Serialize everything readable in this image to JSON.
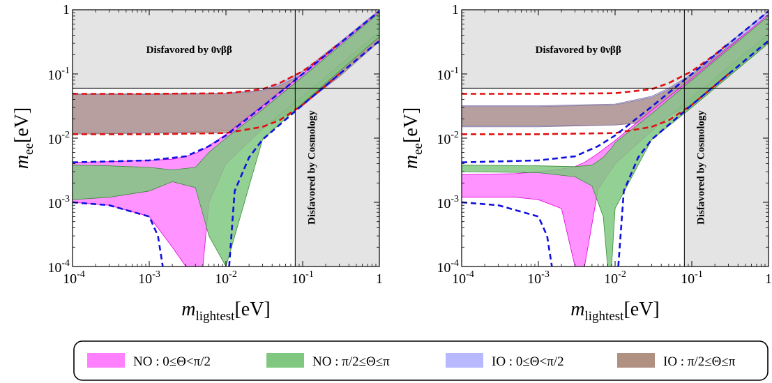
{
  "chart_data": [
    {
      "type": "area",
      "panel": "left",
      "xlabel": "m_lightest[eV]",
      "ylabel": "m_ee[eV]",
      "xscale": "log",
      "yscale": "log",
      "xlim": [
        0.0001,
        1
      ],
      "ylim": [
        0.0001,
        1
      ],
      "xtick_labels": [
        "10^-4",
        "10^-3",
        "10^-2",
        "10^-1",
        "1"
      ],
      "ytick_labels": [
        "10^-4",
        "10^-3",
        "10^-2",
        "10^-1",
        "1"
      ],
      "annotations": [
        "Disfavored by 0νββ",
        "Disfavored by Cosmology"
      ],
      "excluded_regions": {
        "mee_above": 0.06,
        "mlightest_above": 0.08
      },
      "series": [
        {
          "name": "NO : 0≤Θ<π/2",
          "color": "#ff80ff",
          "x": [
            0.0001,
            0.0003,
            0.001,
            0.002,
            0.003,
            0.004,
            0.005,
            0.006,
            0.01,
            0.03,
            0.1,
            1
          ],
          "upper": [
            0.0042,
            0.0043,
            0.0045,
            0.0047,
            0.0052,
            0.0058,
            0.0066,
            0.0076,
            0.0115,
            0.032,
            0.1,
            0.95
          ],
          "lower": [
            0.001,
            0.0009,
            0.0006,
            0.0002,
            0.0001,
            0.0001,
            0.0001,
            0.001,
            0.004,
            0.014,
            0.045,
            0.45
          ]
        },
        {
          "name": "NO : π/2≤Θ≤π",
          "color": "#80c880",
          "x": [
            0.0001,
            0.0003,
            0.001,
            0.002,
            0.004,
            0.006,
            0.01,
            0.03,
            0.1,
            1
          ],
          "upper": [
            0.0038,
            0.0037,
            0.0035,
            0.0032,
            0.0035,
            0.006,
            0.01,
            0.028,
            0.09,
            0.9
          ],
          "lower": [
            0.0011,
            0.0012,
            0.0015,
            0.0021,
            0.0017,
            0.0003,
            0.0001,
            0.0095,
            0.035,
            0.38
          ]
        },
        {
          "name": "IO : 0≤Θ<π/2",
          "color": "#b8b8ff",
          "x": [
            0.0001,
            0.001,
            0.01,
            0.03,
            0.05,
            0.1,
            0.3,
            1
          ],
          "upper": [
            0.049,
            0.049,
            0.05,
            0.056,
            0.07,
            0.11,
            0.31,
            0.99
          ],
          "lower": [
            0.012,
            0.012,
            0.013,
            0.016,
            0.02,
            0.035,
            0.1,
            0.33
          ]
        },
        {
          "name": "IO : π/2≤Θ≤π",
          "color": "#b09080",
          "x": [
            0.0001,
            0.001,
            0.01,
            0.03,
            0.05,
            0.1,
            0.3,
            1
          ],
          "upper": [
            0.048,
            0.048,
            0.049,
            0.054,
            0.066,
            0.1,
            0.27,
            0.8
          ],
          "lower": [
            0.0115,
            0.012,
            0.012,
            0.015,
            0.02,
            0.033,
            0.09,
            0.32
          ]
        }
      ],
      "reference_curves": [
        {
          "color": "#e01010",
          "style": "dashed",
          "x": [
            0.0001,
            0.001,
            0.01,
            0.03,
            0.05,
            0.1,
            0.2,
            0.3
          ],
          "y": [
            0.049,
            0.049,
            0.05,
            0.058,
            0.072,
            0.11,
            0.2,
            0.3
          ]
        },
        {
          "color": "#e01010",
          "style": "dashed",
          "x": [
            0.0001,
            0.001,
            0.01,
            0.03,
            0.05,
            0.1,
            0.2,
            0.3
          ],
          "y": [
            0.0115,
            0.0115,
            0.012,
            0.015,
            0.019,
            0.033,
            0.066,
            0.1
          ]
        },
        {
          "color": "#1010e0",
          "style": "dashed",
          "x": [
            0.0001,
            0.001,
            0.003,
            0.006,
            0.01,
            0.03,
            0.1,
            1
          ],
          "y": [
            0.0042,
            0.0045,
            0.0052,
            0.0075,
            0.011,
            0.031,
            0.1,
            0.95
          ]
        },
        {
          "color": "#1010e0",
          "style": "dashed",
          "x": [
            0.0001,
            0.0003,
            0.001,
            0.0013,
            0.0015
          ],
          "y": [
            0.001,
            0.0009,
            0.0006,
            0.0003,
            0.0001
          ]
        },
        {
          "color": "#1010e0",
          "style": "dashed",
          "x": [
            0.011,
            0.013,
            0.02,
            0.03,
            0.1,
            1
          ],
          "y": [
            0.0001,
            0.0015,
            0.005,
            0.0095,
            0.033,
            0.33
          ]
        }
      ]
    },
    {
      "type": "area",
      "panel": "right",
      "xlabel": "m_lightest[eV]",
      "ylabel": "m_ee[eV]",
      "xscale": "log",
      "yscale": "log",
      "xlim": [
        0.0001,
        1
      ],
      "ylim": [
        0.0001,
        1
      ],
      "xtick_labels": [
        "10^-4",
        "10^-3",
        "10^-2",
        "10^-1",
        "1"
      ],
      "ytick_labels": [
        "10^-4",
        "10^-3",
        "10^-2",
        "10^-1",
        "1"
      ],
      "annotations": [
        "Disfavored by 0νββ",
        "Disfavored by Cosmology"
      ],
      "excluded_regions": {
        "mee_above": 0.06,
        "mlightest_above": 0.08
      },
      "series": [
        {
          "name": "NO : 0≤Θ<π/2",
          "color": "#ff80ff",
          "x": [
            0.0001,
            0.0005,
            0.001,
            0.002,
            0.003,
            0.004,
            0.006,
            0.01,
            0.03,
            0.1,
            1
          ],
          "upper": [
            0.0027,
            0.0028,
            0.003,
            0.0033,
            0.0036,
            0.0042,
            0.0058,
            0.0092,
            0.027,
            0.085,
            0.85
          ],
          "lower": [
            0.0012,
            0.0012,
            0.0011,
            0.0008,
            0.0001,
            0.0001,
            0.0016,
            0.004,
            0.013,
            0.043,
            0.42
          ]
        },
        {
          "name": "NO : π/2≤Θ≤π",
          "color": "#80c880",
          "x": [
            0.0001,
            0.001,
            0.003,
            0.005,
            0.007,
            0.008,
            0.009,
            0.01,
            0.03,
            0.1,
            1
          ],
          "upper": [
            0.0038,
            0.0037,
            0.0036,
            0.0038,
            0.005,
            0.006,
            0.007,
            0.0085,
            0.024,
            0.08,
            0.8
          ],
          "lower": [
            0.003,
            0.0029,
            0.0025,
            0.0018,
            0.0006,
            0.0001,
            0.0001,
            0.0008,
            0.0095,
            0.03,
            0.3
          ]
        },
        {
          "name": "IO : 0≤Θ<π/2",
          "color": "#b8b8ff",
          "x": [
            0.0001,
            0.001,
            0.01,
            0.03,
            0.05,
            0.1,
            0.3,
            1
          ],
          "upper": [
            0.032,
            0.032,
            0.034,
            0.045,
            0.06,
            0.1,
            0.3,
            0.95
          ],
          "lower": [
            0.015,
            0.015,
            0.016,
            0.018,
            0.022,
            0.035,
            0.1,
            0.32
          ]
        },
        {
          "name": "IO : π/2≤Θ≤π",
          "color": "#b09080",
          "x": [
            0.0001,
            0.001,
            0.01,
            0.03,
            0.05,
            0.1,
            0.3,
            1
          ],
          "upper": [
            0.031,
            0.031,
            0.033,
            0.043,
            0.057,
            0.095,
            0.27,
            0.8
          ],
          "lower": [
            0.0155,
            0.0155,
            0.016,
            0.018,
            0.022,
            0.034,
            0.095,
            0.3
          ]
        }
      ],
      "reference_curves": [
        {
          "color": "#e01010",
          "style": "dashed",
          "x": [
            0.0001,
            0.001,
            0.01,
            0.03,
            0.05,
            0.1,
            0.2,
            0.3
          ],
          "y": [
            0.049,
            0.049,
            0.05,
            0.058,
            0.072,
            0.11,
            0.2,
            0.3
          ]
        },
        {
          "color": "#e01010",
          "style": "dashed",
          "x": [
            0.0001,
            0.001,
            0.01,
            0.03,
            0.05,
            0.1,
            0.2,
            0.3
          ],
          "y": [
            0.0115,
            0.0115,
            0.012,
            0.015,
            0.019,
            0.033,
            0.066,
            0.1
          ]
        },
        {
          "color": "#1010e0",
          "style": "dashed",
          "x": [
            0.0001,
            0.001,
            0.003,
            0.006,
            0.01,
            0.03,
            0.1,
            1
          ],
          "y": [
            0.0042,
            0.0045,
            0.0052,
            0.0075,
            0.011,
            0.031,
            0.1,
            0.95
          ]
        },
        {
          "color": "#1010e0",
          "style": "dashed",
          "x": [
            0.0001,
            0.0003,
            0.001,
            0.0013,
            0.0015
          ],
          "y": [
            0.001,
            0.0009,
            0.0006,
            0.0003,
            0.0001
          ]
        },
        {
          "color": "#1010e0",
          "style": "dashed",
          "x": [
            0.011,
            0.013,
            0.02,
            0.03,
            0.1,
            1
          ],
          "y": [
            0.0001,
            0.0015,
            0.005,
            0.0095,
            0.033,
            0.33
          ]
        }
      ]
    }
  ],
  "legend": {
    "placement": "bottom",
    "items": [
      {
        "label": "NO :  0≤Θ<π/2",
        "color": "#ff80ff"
      },
      {
        "label": "NO :  π/2≤Θ≤π",
        "color": "#80c880"
      },
      {
        "label": "IO :  0≤Θ<π/2",
        "color": "#b8b8ff"
      },
      {
        "label": "IO :  π/2≤Θ≤π",
        "color": "#b09080"
      }
    ]
  }
}
